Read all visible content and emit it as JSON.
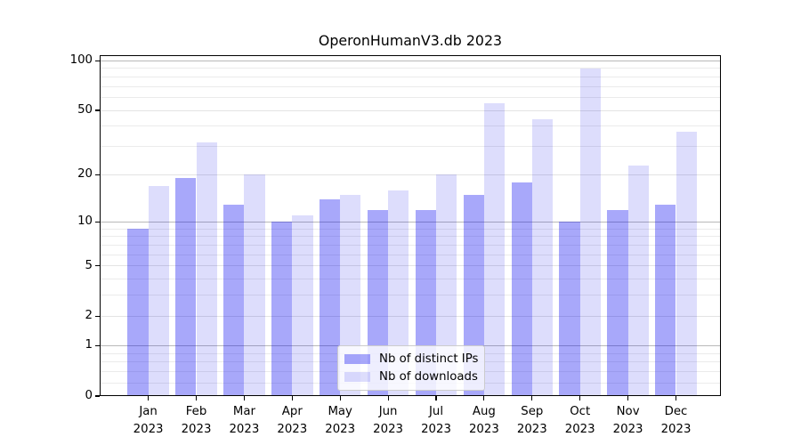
{
  "title": "OperonHumanV3.db 2023",
  "chart_data": {
    "type": "bar",
    "title": "OperonHumanV3.db 2023",
    "categories": [
      "Jan",
      "Feb",
      "Mar",
      "Apr",
      "May",
      "Jun",
      "Jul",
      "Aug",
      "Sep",
      "Oct",
      "Nov",
      "Dec"
    ],
    "category_year": "2023",
    "series": [
      {
        "name": "Nb of distinct IPs",
        "color": "#0000f0",
        "alpha": 0.34,
        "blended_color": "#a9a9fa",
        "values": [
          9,
          19,
          13,
          10,
          14,
          12,
          12,
          15,
          18,
          10,
          12,
          13
        ]
      },
      {
        "name": "Nb of downloads",
        "color": "#0000e6",
        "alpha": 0.135,
        "blended_color": "#dcdcfb",
        "values": [
          17,
          32,
          20,
          11,
          15,
          16,
          20,
          55,
          44,
          90,
          23,
          37
        ]
      }
    ],
    "xlabel": "",
    "ylabel": "",
    "yscale": "log1p",
    "y_ticks": [
      0,
      1,
      2,
      5,
      10,
      20,
      50,
      100
    ],
    "ylim": [
      0,
      108
    ],
    "grid": true,
    "legend_position": "lower-center",
    "grid_major_color": "#b9b9b9",
    "grid_minor_color": "#ebebeb",
    "grid_labeled_color": "#e3e3e3"
  }
}
